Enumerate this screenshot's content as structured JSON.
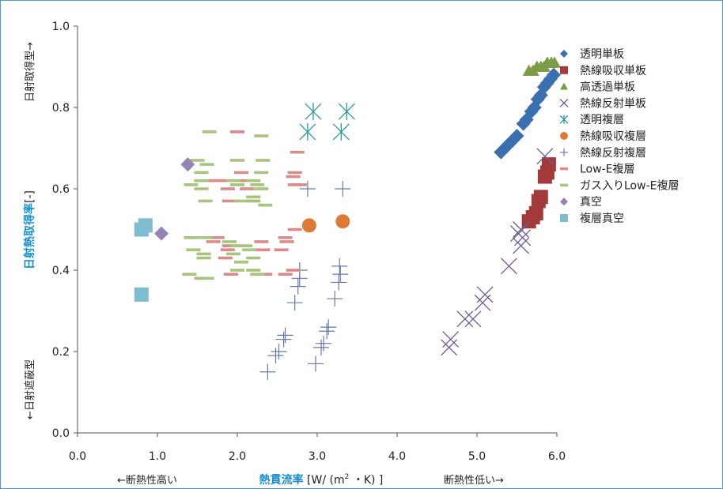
{
  "chart_data": {
    "type": "scatter",
    "xlabel_bold": "熱貫流率",
    "xlabel_rest": " [W/ (m",
    "xlabel_sup": "2",
    "xlabel_tail": " ・K) ]",
    "ylabel_bold": "日射熱取得率",
    "ylabel_rest": "[-]",
    "x_left_note": "←断熱性高い",
    "x_right_note": "断熱性低い→",
    "y_top_note": "日射取得型→",
    "y_bottom_note": "←日射遮蔽型",
    "xlim": [
      0,
      6
    ],
    "ylim": [
      0,
      1
    ],
    "xticks": [
      "0.0",
      "1.0",
      "2.0",
      "3.0",
      "4.0",
      "5.0",
      "6.0"
    ],
    "yticks": [
      "0.0",
      "0.2",
      "0.4",
      "0.6",
      "0.8",
      "1.0"
    ],
    "grid": false,
    "legend_position": "right",
    "series": [
      {
        "name": "透明単板",
        "marker": "diamond",
        "color": "#3a6fb0",
        "points": [
          [
            5.3,
            0.69
          ],
          [
            5.35,
            0.7
          ],
          [
            5.4,
            0.71
          ],
          [
            5.45,
            0.72
          ],
          [
            5.5,
            0.73
          ],
          [
            5.58,
            0.76
          ],
          [
            5.62,
            0.77
          ],
          [
            5.68,
            0.79
          ],
          [
            5.72,
            0.8
          ],
          [
            5.76,
            0.82
          ],
          [
            5.8,
            0.83
          ],
          [
            5.84,
            0.85
          ],
          [
            5.88,
            0.86
          ],
          [
            5.92,
            0.87
          ],
          [
            5.96,
            0.88
          ]
        ]
      },
      {
        "name": "熱線吸収単板",
        "marker": "square",
        "color": "#a33a3a",
        "points": [
          [
            5.65,
            0.52
          ],
          [
            5.7,
            0.53
          ],
          [
            5.74,
            0.54
          ],
          [
            5.77,
            0.57
          ],
          [
            5.8,
            0.58
          ],
          [
            5.85,
            0.63
          ],
          [
            5.88,
            0.64
          ],
          [
            5.9,
            0.66
          ]
        ]
      },
      {
        "name": "高透過単板",
        "marker": "triangle",
        "color": "#7d9c46",
        "points": [
          [
            5.65,
            0.89
          ],
          [
            5.7,
            0.89
          ],
          [
            5.75,
            0.9
          ],
          [
            5.8,
            0.9
          ],
          [
            5.84,
            0.9
          ],
          [
            5.88,
            0.91
          ],
          [
            5.93,
            0.91
          ],
          [
            5.97,
            0.91
          ]
        ]
      },
      {
        "name": "熱線反射単板",
        "marker": "x",
        "color": "#6c5a94",
        "points": [
          [
            4.65,
            0.21
          ],
          [
            4.67,
            0.23
          ],
          [
            4.85,
            0.28
          ],
          [
            4.95,
            0.28
          ],
          [
            5.07,
            0.32
          ],
          [
            5.1,
            0.34
          ],
          [
            5.4,
            0.41
          ],
          [
            5.55,
            0.46
          ],
          [
            5.57,
            0.48
          ],
          [
            5.52,
            0.49
          ],
          [
            5.55,
            0.5
          ],
          [
            5.85,
            0.68
          ]
        ]
      },
      {
        "name": "透明複層",
        "marker": "asterisk",
        "color": "#2a9a98",
        "points": [
          [
            2.88,
            0.74
          ],
          [
            2.95,
            0.79
          ],
          [
            3.3,
            0.74
          ],
          [
            3.37,
            0.79
          ]
        ]
      },
      {
        "name": "熱線吸収複層",
        "marker": "circle",
        "color": "#dd7a35",
        "points": [
          [
            2.9,
            0.51
          ],
          [
            3.32,
            0.52
          ]
        ]
      },
      {
        "name": "熱線反射複層",
        "marker": "plus",
        "color": "#6a78a8",
        "points": [
          [
            2.38,
            0.15
          ],
          [
            2.48,
            0.19
          ],
          [
            2.52,
            0.2
          ],
          [
            2.58,
            0.23
          ],
          [
            2.6,
            0.24
          ],
          [
            2.72,
            0.32
          ],
          [
            2.76,
            0.36
          ],
          [
            2.78,
            0.38
          ],
          [
            2.78,
            0.4
          ],
          [
            2.88,
            0.6
          ],
          [
            2.98,
            0.17
          ],
          [
            3.05,
            0.21
          ],
          [
            3.08,
            0.22
          ],
          [
            3.12,
            0.25
          ],
          [
            3.14,
            0.26
          ],
          [
            3.22,
            0.33
          ],
          [
            3.27,
            0.37
          ],
          [
            3.29,
            0.39
          ],
          [
            3.28,
            0.41
          ],
          [
            3.32,
            0.6
          ]
        ]
      },
      {
        "name": "Low-E複層",
        "marker": "dash",
        "color": "#d98a8a",
        "points": [
          [
            1.75,
            0.48
          ],
          [
            1.9,
            0.46
          ],
          [
            1.92,
            0.39
          ],
          [
            2.0,
            0.74
          ],
          [
            2.05,
            0.64
          ],
          [
            2.1,
            0.62
          ],
          [
            2.12,
            0.6
          ],
          [
            1.85,
            0.62
          ],
          [
            1.88,
            0.6
          ],
          [
            1.9,
            0.57
          ],
          [
            1.88,
            0.45
          ],
          [
            1.85,
            0.43
          ],
          [
            1.7,
            0.47
          ],
          [
            1.72,
            0.62
          ],
          [
            2.3,
            0.47
          ],
          [
            2.32,
            0.45
          ],
          [
            2.35,
            0.39
          ],
          [
            2.6,
            0.39
          ],
          [
            2.7,
            0.4
          ],
          [
            2.72,
            0.64
          ],
          [
            2.7,
            0.63
          ],
          [
            2.75,
            0.69
          ],
          [
            2.72,
            0.61
          ],
          [
            2.6,
            0.48
          ],
          [
            2.62,
            0.47
          ],
          [
            2.55,
            0.45
          ],
          [
            2.72,
            0.5
          ],
          [
            2.78,
            0.61
          ],
          [
            2.2,
            0.57
          ]
        ]
      },
      {
        "name": "ガス入りLow-E複層",
        "marker": "dash",
        "color": "#a7c37e",
        "points": [
          [
            1.65,
            0.74
          ],
          [
            2.3,
            0.73
          ],
          [
            1.5,
            0.67
          ],
          [
            1.62,
            0.66
          ],
          [
            2.32,
            0.67
          ],
          [
            2.0,
            0.67
          ],
          [
            1.55,
            0.64
          ],
          [
            1.55,
            0.62
          ],
          [
            1.42,
            0.61
          ],
          [
            1.55,
            0.6
          ],
          [
            1.6,
            0.57
          ],
          [
            1.6,
            0.48
          ],
          [
            1.42,
            0.48
          ],
          [
            1.45,
            0.45
          ],
          [
            1.58,
            0.44
          ],
          [
            1.58,
            0.43
          ],
          [
            1.4,
            0.39
          ],
          [
            1.55,
            0.38
          ],
          [
            1.62,
            0.38
          ],
          [
            2.2,
            0.58
          ],
          [
            2.2,
            0.57
          ],
          [
            2.1,
            0.46
          ],
          [
            2.15,
            0.45
          ],
          [
            2.2,
            0.43
          ],
          [
            2.2,
            0.4
          ],
          [
            2.25,
            0.39
          ],
          [
            2.3,
            0.64
          ],
          [
            2.2,
            0.62
          ],
          [
            2.25,
            0.61
          ],
          [
            2.3,
            0.6
          ],
          [
            2.35,
            0.56
          ],
          [
            2.05,
            0.57
          ],
          [
            1.95,
            0.62
          ],
          [
            2.0,
            0.61
          ],
          [
            1.9,
            0.47
          ],
          [
            2.0,
            0.46
          ],
          [
            1.95,
            0.44
          ],
          [
            2.05,
            0.42
          ],
          [
            2.0,
            0.4
          ]
        ]
      },
      {
        "name": "真空",
        "marker": "diamond",
        "color": "#9484b6",
        "points": [
          [
            1.38,
            0.66
          ],
          [
            1.05,
            0.49
          ]
        ]
      },
      {
        "name": "複層真空",
        "marker": "square",
        "color": "#7fbcd0",
        "points": [
          [
            0.85,
            0.51
          ],
          [
            0.8,
            0.5
          ],
          [
            0.8,
            0.34
          ]
        ]
      }
    ]
  }
}
